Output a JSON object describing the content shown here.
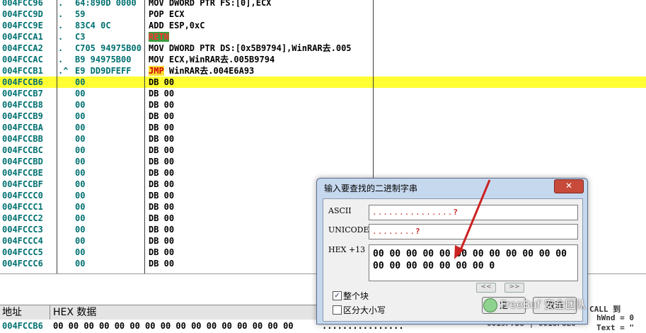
{
  "cpu": {
    "rows": [
      {
        "addr": "004FCC96",
        "arrow": ".",
        "hex": "64:890D 0000",
        "dis": "MOV DWORD PTR FS:[0],ECX",
        "sel": false
      },
      {
        "addr": "004FCC9D",
        "arrow": ".",
        "hex": "59",
        "dis": "POP ECX",
        "sel": false
      },
      {
        "addr": "004FCC9E",
        "arrow": ".",
        "hex": "83C4 0C",
        "dis": "ADD ESP,0xC",
        "sel": false
      },
      {
        "addr": "004FCCA1",
        "arrow": ".",
        "hex": "C3",
        "dis": "RETN",
        "sel": false,
        "mn_hl": "retn"
      },
      {
        "addr": "004FCCA2",
        "arrow": ".",
        "hex": "C705 94975B00",
        "dis": "MOV DWORD PTR DS:[0x5B9794],WinRAR去.005",
        "sel": false,
        "ul": true
      },
      {
        "addr": "004FCCAC",
        "arrow": ".",
        "hex": "B9 94975B00",
        "dis": "MOV ECX,WinRAR去.005B9794",
        "sel": false,
        "ul": true
      },
      {
        "addr": "004FCCB1",
        "arrow": ".^",
        "hex": "E9 DD9DFEFF",
        "dis": "JMP WinRAR去.004E6A93",
        "sel": false,
        "mn_hl": "jmp"
      },
      {
        "addr": "004FCCB6",
        "arrow": "",
        "hex": "00",
        "dis": "DB 00",
        "sel": true
      },
      {
        "addr": "004FCCB7",
        "arrow": "",
        "hex": "00",
        "dis": "DB 00",
        "sel": false
      },
      {
        "addr": "004FCCB8",
        "arrow": "",
        "hex": "00",
        "dis": "DB 00",
        "sel": false
      },
      {
        "addr": "004FCCB9",
        "arrow": "",
        "hex": "00",
        "dis": "DB 00",
        "sel": false
      },
      {
        "addr": "004FCCBA",
        "arrow": "",
        "hex": "00",
        "dis": "DB 00",
        "sel": false
      },
      {
        "addr": "004FCCBB",
        "arrow": "",
        "hex": "00",
        "dis": "DB 00",
        "sel": false
      },
      {
        "addr": "004FCCBC",
        "arrow": "",
        "hex": "00",
        "dis": "DB 00",
        "sel": false
      },
      {
        "addr": "004FCCBD",
        "arrow": "",
        "hex": "00",
        "dis": "DB 00",
        "sel": false
      },
      {
        "addr": "004FCCBE",
        "arrow": "",
        "hex": "00",
        "dis": "DB 00",
        "sel": false
      },
      {
        "addr": "004FCCBF",
        "arrow": "",
        "hex": "00",
        "dis": "DB 00",
        "sel": false
      },
      {
        "addr": "004FCCC0",
        "arrow": "",
        "hex": "00",
        "dis": "DB 00",
        "sel": false
      },
      {
        "addr": "004FCCC1",
        "arrow": "",
        "hex": "00",
        "dis": "DB 00",
        "sel": false
      },
      {
        "addr": "004FCCC2",
        "arrow": "",
        "hex": "00",
        "dis": "DB 00",
        "sel": false
      },
      {
        "addr": "004FCCC3",
        "arrow": "",
        "hex": "00",
        "dis": "DB 00",
        "sel": false
      },
      {
        "addr": "004FCCC4",
        "arrow": "",
        "hex": "00",
        "dis": "DB 00",
        "sel": false
      },
      {
        "addr": "004FCCC5",
        "arrow": "",
        "hex": "00",
        "dis": "DB 00",
        "sel": false
      },
      {
        "addr": "004FCCC6",
        "arrow": "",
        "hex": "00",
        "dis": "DB 00",
        "sel": false
      }
    ]
  },
  "dump": {
    "col_address": "地址",
    "col_hex": "HEX 数据",
    "row_addr": "004FCCB6",
    "row_hex": "00 00 00 00 00 00 00 00 00 00 00 00 00 00 00 00",
    "row_ascii": "................"
  },
  "right_stub": {
    "line1": "0019F7D8 | 0018F8E0",
    "line2": "hWnd = 0",
    "line3": "Text = \"",
    "label": "CALL 到"
  },
  "dialog": {
    "title": "输入要查找的二进制字串",
    "close_label": "✕",
    "ascii_label": "ASCII",
    "ascii_value": "...............",
    "ascii_tail": "?",
    "unicode_label": "UNICODE",
    "unicode_value": "........",
    "unicode_tail": "?",
    "hex_label": "HEX +13",
    "hex_line1": "00 00 00 00 00 00 00 00 00 00 00 00",
    "hex_line2": "00 00 00 00 00 00 00 0",
    "prev_label": "<<",
    "next_label": ">>",
    "check_entire": "整个块",
    "check_case": "区分大小写",
    "ok_label": "定",
    "cancel_label": "取消"
  },
  "watermark": "FreeBuf 安全团队",
  "colors": {
    "selection": "#ffff33",
    "address": "#007070",
    "arrow_annotation": "#cc2222",
    "dialog_frame": "#c6d8ee"
  }
}
